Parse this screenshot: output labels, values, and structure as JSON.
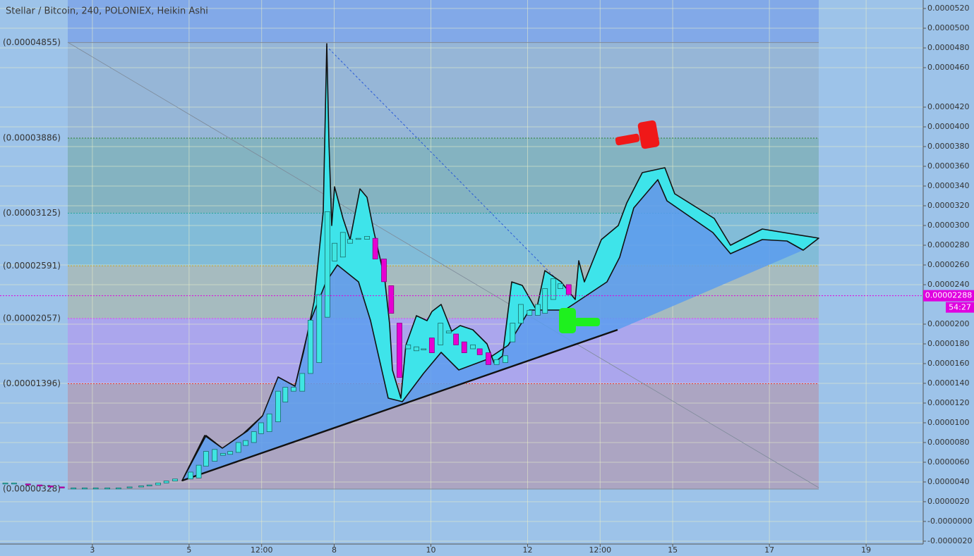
{
  "header": {
    "title": "Stellar / Bitcoin, 240, POLONIEX, Heikin Ashi"
  },
  "chart_data": {
    "type": "candlestick",
    "x": [
      1.2,
      1.38,
      1.67,
      1.91,
      2.14,
      2.37,
      2.61,
      2.84,
      3.07,
      3.31,
      3.54,
      3.77,
      4.01,
      4.18,
      4.36,
      4.53,
      4.71,
      5.03,
      5.2,
      5.35,
      5.53,
      5.7,
      5.85,
      6.02,
      6.17,
      6.34,
      6.49,
      6.66,
      6.84,
      6.99,
      7.16,
      7.34,
      7.51,
      7.69,
      7.86,
      8.01,
      8.18,
      8.33,
      8.5,
      8.68,
      8.85,
      9.03,
      9.18,
      9.35,
      9.53,
      9.7,
      9.85,
      10.02,
      10.2,
      10.37,
      10.52,
      10.69,
      10.87,
      11.01,
      11.19,
      11.36,
      11.54,
      11.69,
      11.86,
      12.04,
      12.21,
      12.36,
      12.53,
      12.68,
      12.85
    ],
    "open": [
      3.8e-06,
      3.9e-06,
      3.8e-06,
      3.7e-06,
      3.6e-06,
      3.5e-06,
      3.4e-06,
      3.4e-06,
      3.4e-06,
      3.4e-06,
      3.4e-06,
      3.4e-06,
      3.5e-06,
      3.6e-06,
      3.7e-06,
      3.9e-06,
      4.1e-06,
      4.3e-06,
      4.4e-06,
      5.6e-06,
      6.1e-06,
      6.7e-06,
      6.8e-06,
      7e-06,
      7.7e-06,
      8e-06,
      8.9e-06,
      9.1e-06,
      1.01e-05,
      1.21e-05,
      1.32e-05,
      1.32e-05,
      1.5e-05,
      1.61e-05,
      2.07e-05,
      2.64e-05,
      2.68e-05,
      2.82e-05,
      2.86e-05,
      2.86e-05,
      2.87e-05,
      2.66e-05,
      2.39e-05,
      2.01e-05,
      1.75e-05,
      1.73e-05,
      1.75e-05,
      1.86e-05,
      1.79e-05,
      1.91e-05,
      1.9e-05,
      1.82e-05,
      1.75e-05,
      1.75e-05,
      1.71e-05,
      1.59e-05,
      1.61e-05,
      1.82e-05,
      2.01e-05,
      2.09e-05,
      2.09e-05,
      2.11e-05,
      2.25e-05,
      2.36e-05,
      2.4e-05
    ],
    "close": [
      3.9e-06,
      3.9e-06,
      3.7e-06,
      3.6e-06,
      3.5e-06,
      3.4e-06,
      3.4e-06,
      3.4e-06,
      3.4e-06,
      3.4e-06,
      3.4e-06,
      3.5e-06,
      3.6e-06,
      3.7e-06,
      3.9e-06,
      4.1e-06,
      4.3e-06,
      5e-06,
      5.7e-06,
      7.1e-06,
      7.3e-06,
      6.9e-06,
      7.1e-06,
      8e-06,
      8.2e-06,
      9.1e-06,
      1e-05,
      1.09e-05,
      1.32e-05,
      1.36e-05,
      1.36e-05,
      1.5e-05,
      2.04e-05,
      2.3e-05,
      3.14e-05,
      2.82e-05,
      2.93e-05,
      2.86e-05,
      2.87e-05,
      2.89e-05,
      2.66e-05,
      2.43e-05,
      2.11e-05,
      1.46e-05,
      1.79e-05,
      1.77e-05,
      1.75e-05,
      1.71e-05,
      2.01e-05,
      1.93e-05,
      1.79e-05,
      1.71e-05,
      1.79e-05,
      1.69e-05,
      1.59e-05,
      1.64e-05,
      1.68e-05,
      2.01e-05,
      2.2e-05,
      2.14e-05,
      2.2e-05,
      2.36e-05,
      2.46e-05,
      2.41e-05,
      2.3e-05
    ],
    "colors": {
      "up": "#3fe6e2",
      "down": "#e600d2"
    },
    "xlim": [
      1.09,
      20.18
    ],
    "ylim": [
      -2.29e-06,
      5.286e-05
    ],
    "grid": true,
    "xticks": [
      3,
      5,
      {
        "value": 6.5,
        "label": "12:00"
      },
      8,
      10,
      12,
      {
        "value": 13.5,
        "label": "12:00"
      },
      15,
      17,
      19
    ],
    "yticks": [
      {
        "value": 5.2e-05,
        "label": "0.0000520"
      },
      {
        "value": 5e-05,
        "label": "0.0000500"
      },
      {
        "value": 4.8e-05,
        "label": "0.0000480"
      },
      {
        "value": 4.6e-05,
        "label": "0.0000460"
      },
      {
        "value": 4.2e-05,
        "label": "0.0000420"
      },
      {
        "value": 4e-05,
        "label": "0.0000400"
      },
      {
        "value": 3.8e-05,
        "label": "0.0000380"
      },
      {
        "value": 3.6e-05,
        "label": "0.0000360"
      },
      {
        "value": 3.4e-05,
        "label": "0.0000340"
      },
      {
        "value": 3.2e-05,
        "label": "0.0000320"
      },
      {
        "value": 3e-05,
        "label": "0.0000300"
      },
      {
        "value": 2.8e-05,
        "label": "0.0000280"
      },
      {
        "value": 2.6e-05,
        "label": "0.0000260"
      },
      {
        "value": 2.4e-05,
        "label": "0.0000240"
      },
      {
        "value": 2e-05,
        "label": "0.0000200"
      },
      {
        "value": 1.8e-05,
        "label": "0.0000180"
      },
      {
        "value": 1.6e-05,
        "label": "0.0000160"
      },
      {
        "value": 1.4e-05,
        "label": "0.0000140"
      },
      {
        "value": 1.2e-05,
        "label": "0.0000120"
      },
      {
        "value": 1e-05,
        "label": "0.0000100"
      },
      {
        "value": 8e-06,
        "label": "0.0000080"
      },
      {
        "value": 6e-06,
        "label": "0.0000060"
      },
      {
        "value": 4e-06,
        "label": "0.0000040"
      },
      {
        "value": 2e-06,
        "label": "0.0000020"
      },
      {
        "value": 0,
        "label": "-0.0000000"
      },
      {
        "value": -2e-06,
        "label": "-0.0000020"
      }
    ],
    "fib_levels": [
      {
        "value": 4.855e-05,
        "label": "(0.00004855)"
      },
      {
        "value": 3.886e-05,
        "label": "(0.00003886)"
      },
      {
        "value": 3.125e-05,
        "label": "(0.00003125)"
      },
      {
        "value": 2.591e-05,
        "label": "(0.00002591)"
      },
      {
        "value": 2.057e-05,
        "label": "(0.00002057)"
      },
      {
        "value": 1.396e-05,
        "label": "(0.00001396)"
      },
      {
        "value": 3.28e-06,
        "label": "(0.00000328)"
      }
    ],
    "fib_colors": [
      "#808a96",
      "#2e7d32",
      "#26a69a",
      "#c8a02a",
      "#e040fb",
      "#e53935",
      "#808a96"
    ],
    "last_price": 2.288e-05,
    "countdown": "54:27"
  }
}
